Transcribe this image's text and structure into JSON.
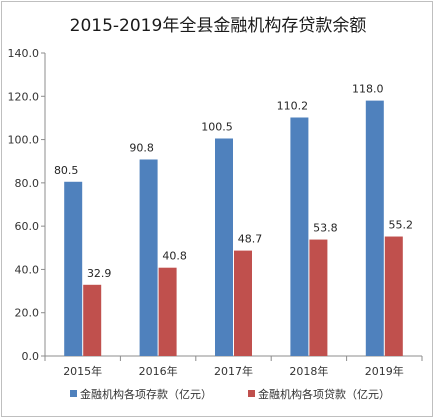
{
  "chart_data": {
    "type": "bar",
    "title": "2015-2019年全县金融机构存贷款余额",
    "categories": [
      "2015年",
      "2016年",
      "2017年",
      "2018年",
      "2019年"
    ],
    "series": [
      {
        "name": "金融机构各项存款（亿元）",
        "color": "#4f81bd",
        "values": [
          80.5,
          90.8,
          100.5,
          110.2,
          118.0
        ],
        "labels": [
          "80.5",
          "90.8",
          "100.5",
          "110.2",
          "118.0"
        ]
      },
      {
        "name": "金融机构各项贷款（亿元）",
        "color": "#c0504d",
        "values": [
          32.9,
          40.8,
          48.7,
          53.8,
          55.2
        ],
        "labels": [
          "32.9",
          "40.8",
          "48.7",
          "53.8",
          "55.2"
        ]
      }
    ],
    "ylim": [
      0,
      140
    ],
    "yticks": [
      "0.0",
      "20.0",
      "40.0",
      "60.0",
      "80.0",
      "100.0",
      "120.0",
      "140.0"
    ],
    "grid": false,
    "legend_position": "bottom",
    "xlabel": "",
    "ylabel": ""
  }
}
